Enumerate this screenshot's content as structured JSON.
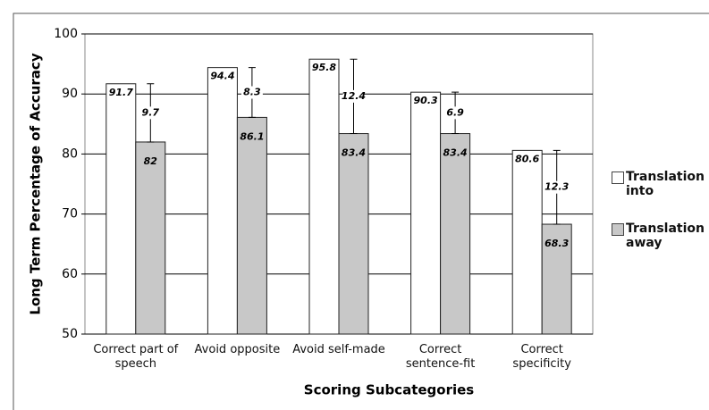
{
  "chart_data": {
    "type": "bar",
    "categories": [
      "Correct part of speech",
      "Avoid opposite",
      "Avoid self-made",
      "Correct sentence-fit",
      "Correct specificity"
    ],
    "series": [
      {
        "name": "Translation into",
        "color": "#ffffff",
        "values": [
          91.7,
          94.4,
          95.8,
          90.3,
          80.6
        ]
      },
      {
        "name": "Translation away",
        "color": "#c8c8c8",
        "values": [
          82.0,
          86.1,
          83.4,
          83.4,
          68.3
        ],
        "errors": [
          9.7,
          8.3,
          12.4,
          6.9,
          12.3
        ]
      }
    ],
    "xlabel": "Scoring Subcategories",
    "ylabel": "Long Term Percentage of Accuracy",
    "ylim": [
      50,
      100
    ],
    "yticks": [
      50,
      60,
      70,
      80,
      90,
      100
    ],
    "grid": true,
    "legend": "right"
  }
}
